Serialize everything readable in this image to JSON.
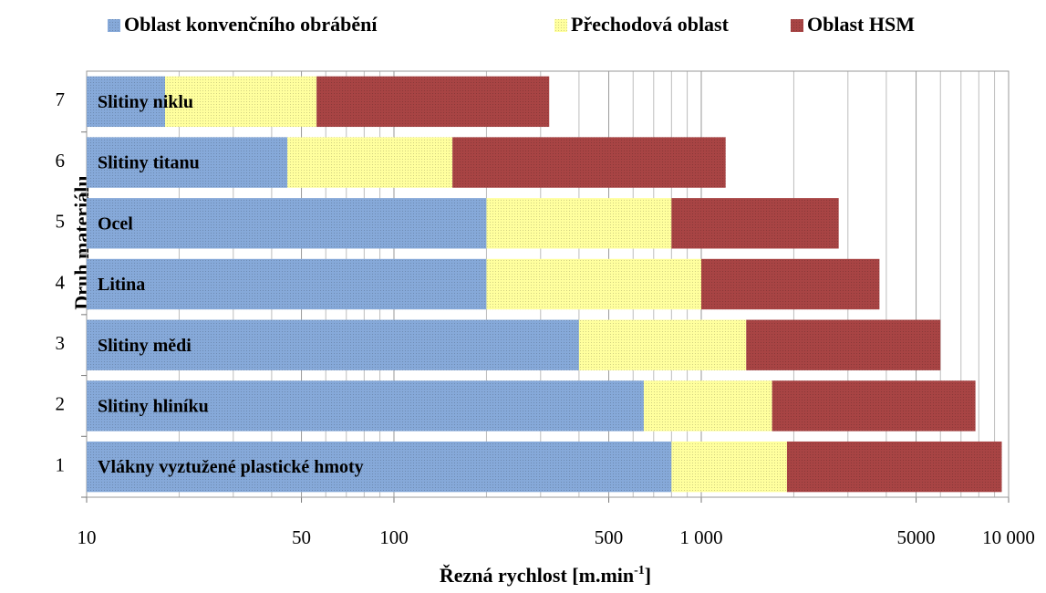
{
  "chart_data": {
    "type": "stacked_barh",
    "categories": [
      "1",
      "2",
      "3",
      "4",
      "5",
      "6",
      "7"
    ],
    "bar_labels": [
      "Vlákny vyztužené plastické hmoty",
      "Slitiny hliníku",
      "Slitiny mědi",
      "Litina",
      "Ocel",
      "Slitiny titanu",
      "Slitiny niklu"
    ],
    "series": [
      {
        "name": "Oblast konvenčního obrábění",
        "color": "#86a9d9",
        "values": [
          800,
          650,
          400,
          200,
          200,
          45,
          18
        ]
      },
      {
        "name": "Přechodová oblast",
        "color": "#ffff9e",
        "values": [
          1100,
          1050,
          1000,
          800,
          600,
          110,
          38
        ]
      },
      {
        "name": "Oblast HSM",
        "color": "#a84444",
        "values": [
          7600,
          6100,
          4600,
          2800,
          2000,
          1045,
          264
        ]
      }
    ],
    "x_scale": "log",
    "xlim": [
      10,
      10000
    ],
    "xticks": [
      10,
      50,
      100,
      500,
      {
        "value": 1000,
        "label": "1 000"
      },
      5000,
      {
        "value": 10000,
        "label": "10 000"
      }
    ],
    "xminor": [
      20,
      30,
      40,
      60,
      70,
      80,
      90,
      200,
      300,
      400,
      600,
      700,
      800,
      900,
      2000,
      3000,
      4000,
      6000,
      7000,
      8000,
      9000
    ],
    "grid": true,
    "legend": "top",
    "x_label": "Řezná rychlost [m.min",
    "x_label_sup": "-1",
    "x_label_end": "]",
    "y_label": "Druh materiálu"
  }
}
